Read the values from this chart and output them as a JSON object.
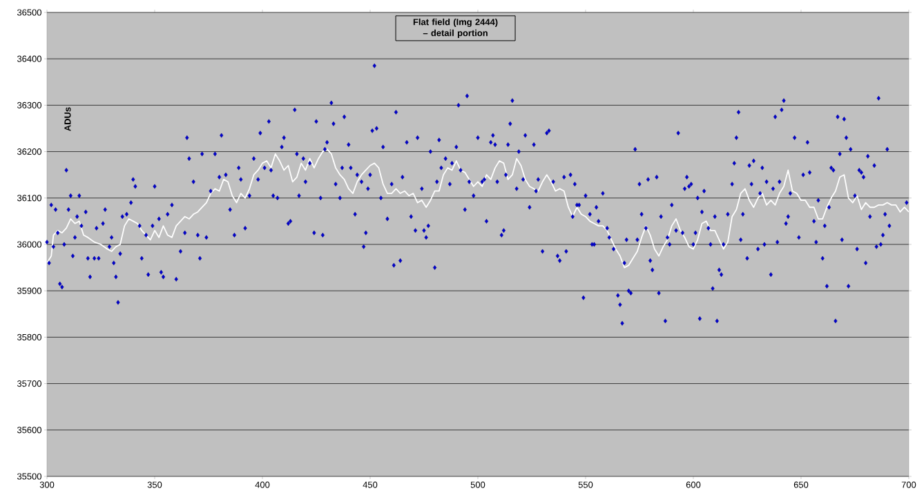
{
  "chart_data": {
    "type": "scatter",
    "title": "Flat field (Img 2444) – detail portion",
    "ylabel": "ADUs",
    "xlim": [
      300,
      700
    ],
    "ylim": [
      35500,
      36500
    ],
    "xticks": [
      300,
      350,
      400,
      450,
      500,
      550,
      600,
      650,
      700
    ],
    "yticks": [
      35500,
      35600,
      35700,
      35800,
      35900,
      36000,
      36100,
      36200,
      36300,
      36400,
      36500
    ],
    "grid": "y",
    "series": [
      {
        "marker": "diamond",
        "color": "#000080",
        "x": [
          300,
          301,
          302,
          303,
          304,
          305,
          306,
          307,
          308,
          309,
          310,
          311,
          312,
          313,
          314,
          315,
          316,
          318,
          319,
          320,
          322,
          323,
          324,
          326,
          327,
          329,
          330,
          331,
          332,
          333,
          334,
          335,
          337,
          339,
          340,
          341,
          343,
          344,
          346,
          347,
          349,
          350,
          352,
          353,
          354,
          356,
          358,
          360,
          362,
          364,
          365,
          366,
          368,
          370,
          371,
          372,
          374,
          376,
          378,
          380,
          381,
          383,
          385,
          387,
          389,
          390,
          392,
          394,
          396,
          398,
          399,
          401,
          403,
          404,
          405,
          407,
          409,
          410,
          412,
          413,
          415,
          416,
          417,
          419,
          420,
          422,
          424,
          425,
          427,
          428,
          429,
          430,
          432,
          433,
          434,
          436,
          437,
          438,
          440,
          441,
          443,
          444,
          446,
          447,
          448,
          449,
          450,
          451,
          452,
          453,
          455,
          456,
          458,
          460,
          461,
          462,
          464,
          465,
          467,
          469,
          471,
          472,
          474,
          475,
          476,
          477,
          478,
          480,
          481,
          482,
          483,
          485,
          487,
          488,
          490,
          491,
          492,
          494,
          495,
          496,
          498,
          500,
          502,
          503,
          504,
          506,
          507,
          508,
          509,
          511,
          512,
          513,
          514,
          515,
          516,
          518,
          519,
          521,
          522,
          524,
          526,
          527,
          528,
          530,
          532,
          533,
          535,
          537,
          538,
          540,
          541,
          543,
          544,
          545,
          546,
          547,
          549,
          550,
          552,
          553,
          554,
          555,
          556,
          558,
          560,
          561,
          563,
          565,
          566,
          567,
          568,
          569,
          570,
          571,
          573,
          574,
          575,
          576,
          578,
          579,
          580,
          581,
          583,
          584,
          585,
          587,
          588,
          589,
          590,
          592,
          593,
          595,
          596,
          597,
          598,
          599,
          600,
          601,
          602,
          603,
          604,
          605,
          607,
          608,
          609,
          610,
          611,
          612,
          613,
          614,
          616,
          618,
          619,
          620,
          621,
          622,
          623,
          625,
          626,
          627,
          628,
          630,
          631,
          632,
          633,
          634,
          636,
          637,
          638,
          639,
          640,
          641,
          642,
          643,
          644,
          645,
          647,
          649,
          651,
          653,
          654,
          656,
          657,
          658,
          660,
          661,
          662,
          663,
          664,
          665,
          666,
          667,
          668,
          669,
          670,
          671,
          672,
          673,
          675,
          676,
          677,
          678,
          679,
          680,
          681,
          682,
          684,
          685,
          686,
          687,
          688,
          689,
          690,
          691,
          699
        ],
        "values": [
          36005,
          35960,
          36085,
          35995,
          36075,
          36025,
          35915,
          35908,
          36000,
          36160,
          36075,
          36105,
          35975,
          36015,
          36060,
          36105,
          36040,
          36070,
          35970,
          35930,
          35970,
          36035,
          35970,
          36045,
          36075,
          35995,
          36015,
          35960,
          35930,
          35875,
          35980,
          36060,
          36065,
          36090,
          36140,
          36125,
          36040,
          35970,
          36020,
          35935,
          36040,
          36125,
          36055,
          35940,
          35930,
          36065,
          36085,
          35925,
          35985,
          36025,
          36230,
          36185,
          36135,
          36020,
          35970,
          36195,
          36015,
          36115,
          36195,
          36145,
          36235,
          36150,
          36075,
          36020,
          36165,
          36140,
          36035,
          36105,
          36185,
          36140,
          36240,
          36165,
          36265,
          36160,
          36105,
          36100,
          36210,
          36230,
          36045,
          36050,
          36290,
          36195,
          36105,
          36185,
          36135,
          36175,
          36025,
          36265,
          36100,
          36020,
          36205,
          36220,
          36305,
          36260,
          36130,
          36100,
          36165,
          36275,
          36215,
          36165,
          36065,
          36150,
          36135,
          35995,
          36025,
          36120,
          36150,
          36245,
          36385,
          36250,
          36100,
          36210,
          36055,
          36130,
          35955,
          36285,
          35965,
          36145,
          36220,
          36060,
          36030,
          36230,
          36120,
          36030,
          36015,
          36040,
          36200,
          35950,
          36135,
          36225,
          36165,
          36185,
          36130,
          36175,
          36210,
          36300,
          36160,
          36075,
          36320,
          36135,
          36105,
          36230,
          36135,
          36140,
          36050,
          36220,
          36235,
          36215,
          36135,
          36020,
          36030,
          36150,
          36215,
          36260,
          36310,
          36120,
          36200,
          36140,
          36235,
          36080,
          36215,
          36115,
          36140,
          35985,
          36240,
          36245,
          36135,
          35975,
          35965,
          36145,
          35985,
          36150,
          36060,
          36130,
          36085,
          36085,
          35885,
          36105,
          36065,
          36000,
          36000,
          36080,
          36050,
          36110,
          36035,
          36015,
          35990,
          35890,
          35870,
          35830,
          35960,
          36010,
          35900,
          35895,
          36205,
          36010,
          36130,
          36065,
          36035,
          36140,
          35965,
          35945,
          36145,
          35895,
          36060,
          35835,
          36015,
          36000,
          36085,
          36030,
          36240,
          36025,
          36120,
          36145,
          36125,
          36130,
          36000,
          36025,
          36100,
          35840,
          36070,
          36115,
          36035,
          36000,
          35905,
          36060,
          35835,
          35945,
          35935,
          36000,
          36065,
          36130,
          36175,
          36230,
          36285,
          36010,
          36065,
          35970,
          36170,
          36130,
          36180,
          35990,
          36110,
          36165,
          36000,
          36135,
          35935,
          36120,
          36275,
          36005,
          36135,
          36290,
          36310,
          36045,
          36060,
          36110,
          36230,
          36015,
          36150,
          36220,
          36155,
          36050,
          36005,
          36095,
          35970,
          36040,
          35910,
          36080,
          36165,
          36160,
          35835,
          36275,
          36195,
          36010,
          36270,
          36230,
          35910,
          36205,
          36105,
          35990,
          36160,
          36155,
          36145,
          35960,
          36190,
          36060,
          36170,
          35995,
          36315,
          36000,
          36020,
          36065,
          36205,
          36040,
          36090
        ]
      },
      {
        "type": "line",
        "color": "#ffffff",
        "x": [
          300,
          302,
          303,
          305,
          307,
          309,
          311,
          313,
          315,
          317,
          319,
          322,
          325,
          328,
          330,
          332,
          334,
          336,
          338,
          340,
          342,
          344,
          346,
          348,
          350,
          352,
          354,
          356,
          358,
          360,
          362,
          364,
          366,
          368,
          370,
          372,
          374,
          376,
          378,
          380,
          382,
          384,
          386,
          388,
          390,
          392,
          394,
          396,
          398,
          400,
          402,
          404,
          406,
          408,
          410,
          412,
          414,
          416,
          418,
          420,
          422,
          424,
          426,
          428,
          430,
          432,
          434,
          436,
          438,
          440,
          442,
          444,
          446,
          448,
          450,
          452,
          454,
          456,
          458,
          460,
          462,
          464,
          466,
          468,
          470,
          472,
          474,
          476,
          478,
          480,
          482,
          484,
          486,
          488,
          490,
          492,
          494,
          496,
          498,
          500,
          502,
          504,
          506,
          508,
          510,
          512,
          514,
          516,
          518,
          520,
          522,
          524,
          526,
          528,
          530,
          532,
          534,
          536,
          538,
          540,
          542,
          544,
          546,
          548,
          550,
          552,
          554,
          556,
          558,
          560,
          562,
          564,
          566,
          568,
          570,
          572,
          574,
          576,
          578,
          580,
          582,
          584,
          586,
          588,
          590,
          592,
          594,
          596,
          598,
          600,
          602,
          604,
          606,
          608,
          610,
          612,
          614,
          616,
          618,
          620,
          622,
          624,
          626,
          628,
          630,
          632,
          634,
          636,
          638,
          640,
          642,
          644,
          646,
          648,
          650,
          652,
          654,
          656,
          658,
          660,
          662,
          664,
          666,
          668,
          670,
          672,
          674,
          676,
          678,
          680,
          682,
          684,
          686,
          688,
          690,
          692,
          694,
          696,
          698,
          700
        ],
        "values": [
          35960,
          35975,
          36020,
          36030,
          36025,
          36035,
          36055,
          36045,
          36050,
          36020,
          36015,
          36005,
          36000,
          35990,
          35985,
          35995,
          36000,
          36040,
          36055,
          36050,
          36045,
          36030,
          36020,
          36010,
          36030,
          36015,
          36040,
          36020,
          36015,
          36040,
          36050,
          36060,
          36055,
          36065,
          36070,
          36080,
          36090,
          36110,
          36120,
          36115,
          36140,
          36135,
          36105,
          36090,
          36110,
          36100,
          36120,
          36150,
          36160,
          36175,
          36180,
          36165,
          36195,
          36180,
          36160,
          36170,
          36135,
          36145,
          36175,
          36160,
          36185,
          36165,
          36185,
          36200,
          36205,
          36195,
          36165,
          36150,
          36140,
          36120,
          36110,
          36135,
          36150,
          36160,
          36170,
          36175,
          36165,
          36130,
          36110,
          36110,
          36120,
          36110,
          36115,
          36105,
          36110,
          36090,
          36095,
          36080,
          36095,
          36115,
          36115,
          36150,
          36165,
          36160,
          36180,
          36160,
          36155,
          36140,
          36125,
          36135,
          36125,
          36150,
          36140,
          36165,
          36180,
          36175,
          36140,
          36150,
          36185,
          36170,
          36140,
          36125,
          36120,
          36115,
          36135,
          36150,
          36135,
          36115,
          36120,
          36115,
          36080,
          36060,
          36080,
          36065,
          36060,
          36050,
          36045,
          36040,
          36040,
          36030,
          36010,
          35990,
          35975,
          35950,
          35955,
          35970,
          35985,
          36015,
          36040,
          36020,
          35990,
          35975,
          35995,
          36010,
          36040,
          36055,
          36030,
          36015,
          35995,
          35990,
          36010,
          36045,
          36050,
          36030,
          36030,
          36010,
          35990,
          36005,
          36060,
          36075,
          36110,
          36120,
          36095,
          36080,
          36100,
          36110,
          36085,
          36095,
          36085,
          36110,
          36125,
          36160,
          36115,
          36110,
          36095,
          36095,
          36080,
          36080,
          36055,
          36055,
          36080,
          36100,
          36115,
          36145,
          36150,
          36100,
          36090,
          36105,
          36075,
          36090,
          36080,
          36080,
          36085,
          36085,
          36090,
          36085,
          36085,
          36070,
          36080,
          36070
        ]
      }
    ]
  }
}
